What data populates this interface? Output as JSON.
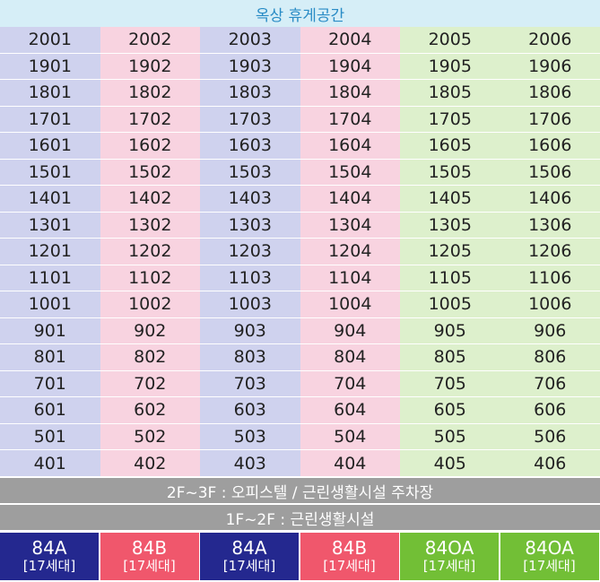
{
  "header": {
    "rooftop": "옥상 휴게공간"
  },
  "grid": {
    "column_colors": [
      "#cfd2ee",
      "#f8d3e0",
      "#cfd2ee",
      "#f8d3e0",
      "#ddf0cc",
      "#ddf0cc"
    ],
    "columns": [
      [
        "2001",
        "1901",
        "1801",
        "1701",
        "1601",
        "1501",
        "1401",
        "1301",
        "1201",
        "1101",
        "1001",
        "901",
        "801",
        "701",
        "601",
        "501",
        "401"
      ],
      [
        "2002",
        "1902",
        "1802",
        "1702",
        "1602",
        "1502",
        "1402",
        "1302",
        "1202",
        "1102",
        "1002",
        "902",
        "802",
        "702",
        "602",
        "502",
        "402"
      ],
      [
        "2003",
        "1903",
        "1803",
        "1703",
        "1603",
        "1503",
        "1403",
        "1303",
        "1203",
        "1103",
        "1003",
        "903",
        "803",
        "703",
        "603",
        "503",
        "403"
      ],
      [
        "2004",
        "1904",
        "1804",
        "1704",
        "1604",
        "1504",
        "1404",
        "1304",
        "1204",
        "1104",
        "1004",
        "904",
        "804",
        "704",
        "604",
        "504",
        "404"
      ],
      [
        "2005",
        "1905",
        "1805",
        "1705",
        "1605",
        "1505",
        "1405",
        "1305",
        "1205",
        "1105",
        "1005",
        "905",
        "805",
        "705",
        "605",
        "505",
        "405"
      ],
      [
        "2006",
        "1906",
        "1806",
        "1706",
        "1606",
        "1506",
        "1406",
        "1306",
        "1206",
        "1106",
        "1006",
        "906",
        "806",
        "706",
        "606",
        "506",
        "406"
      ]
    ]
  },
  "bands": {
    "upper": "2F~3F : 오피스텔 / 근린생활시설 주차장",
    "lower": "1F~2F : 근린생활시설"
  },
  "unit_types": [
    {
      "code": "84A",
      "units": "[17세대]",
      "color": "#24288f"
    },
    {
      "code": "84B",
      "units": "[17세대]",
      "color": "#f0576c"
    },
    {
      "code": "84A",
      "units": "[17세대]",
      "color": "#24288f"
    },
    {
      "code": "84B",
      "units": "[17세대]",
      "color": "#f0576c"
    },
    {
      "code": "84OA",
      "units": "[17세대]",
      "color": "#72bf36"
    },
    {
      "code": "84OA",
      "units": "[17세대]",
      "color": "#72bf36"
    }
  ]
}
